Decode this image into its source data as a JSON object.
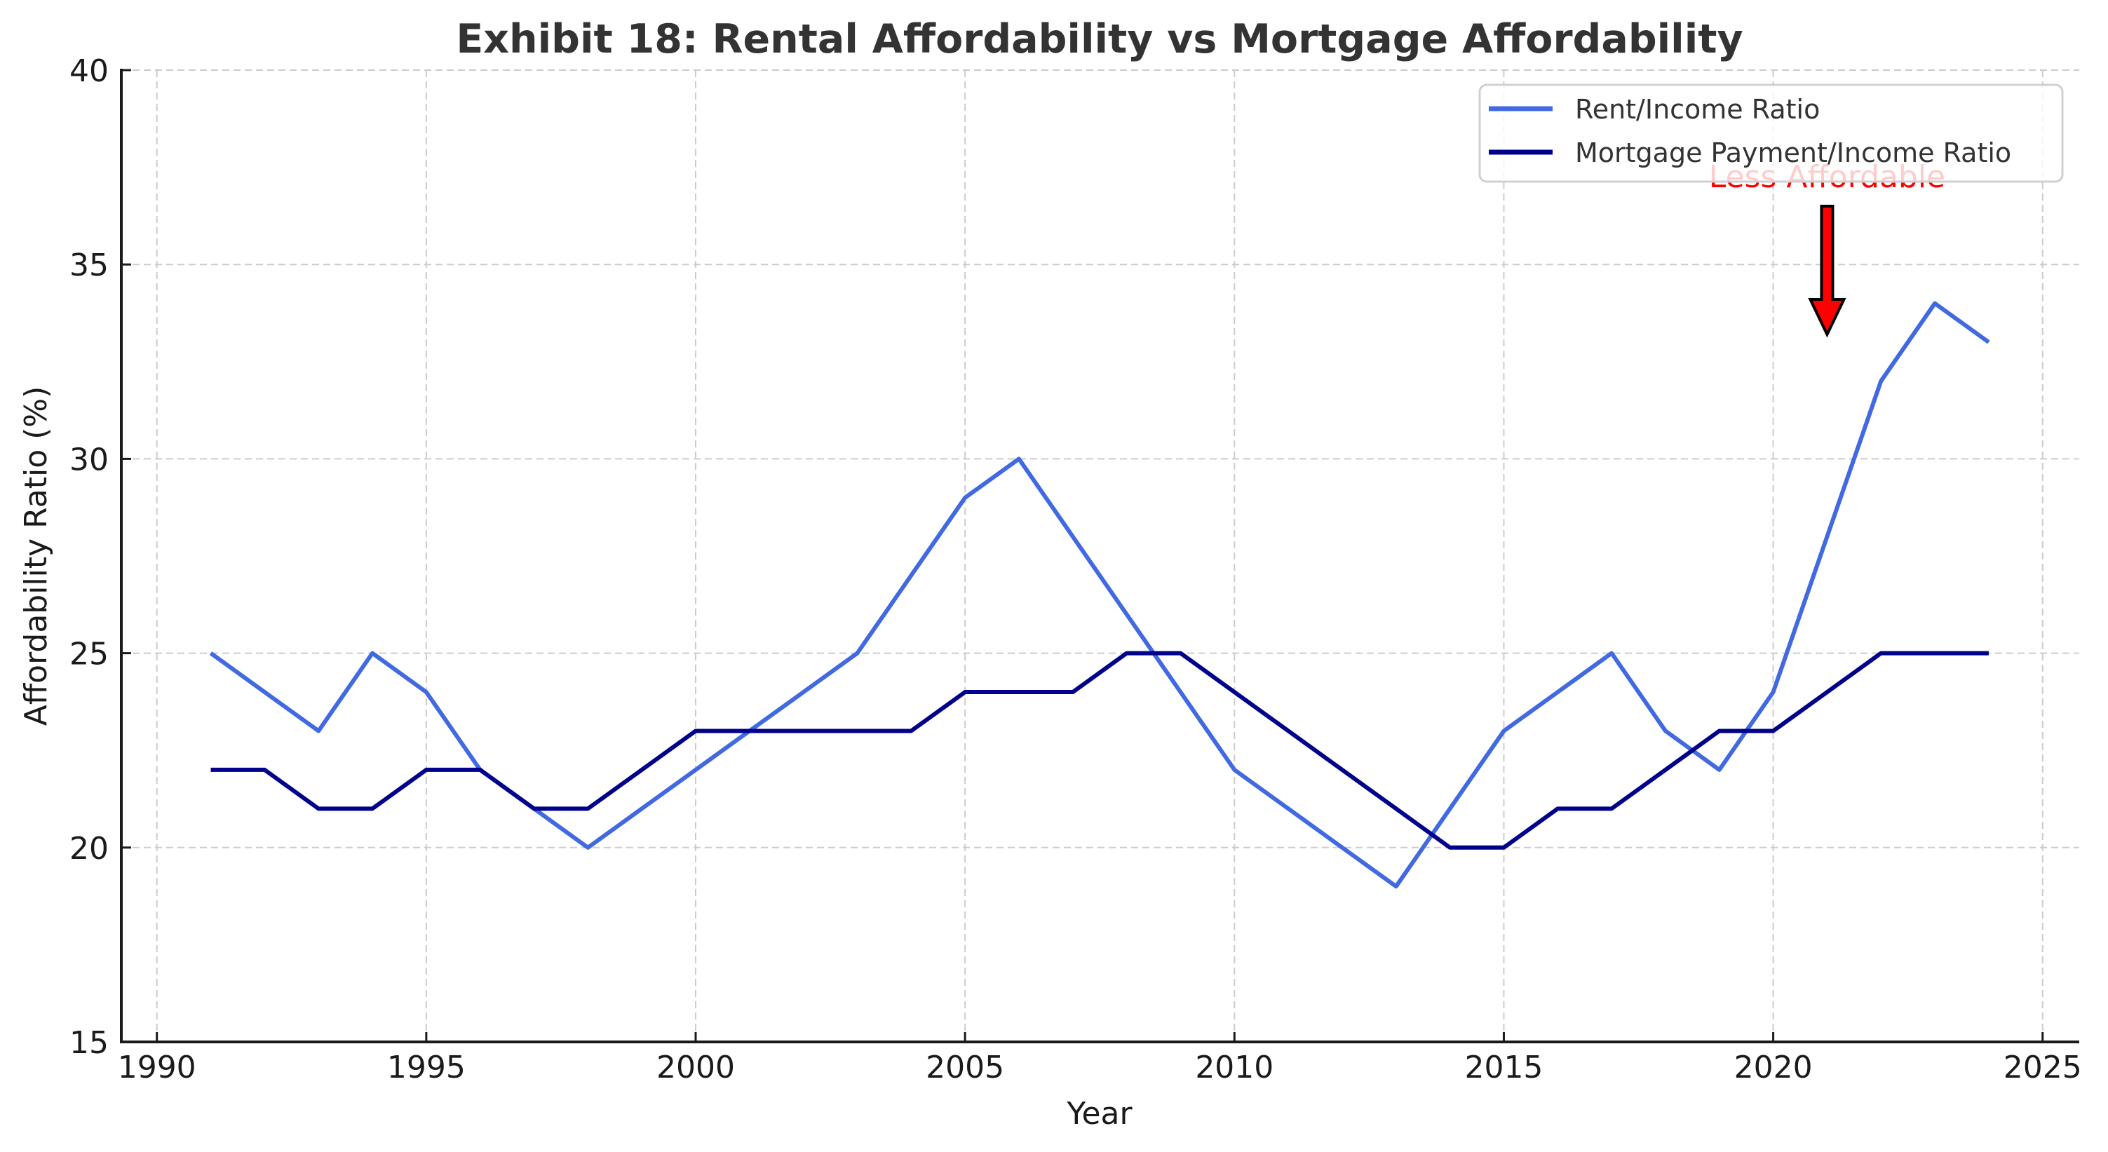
{
  "chart_data": {
    "type": "line",
    "title": "Exhibit 18: Rental Affordability vs Mortgage Affordability",
    "xlabel": "Year",
    "ylabel": "Affordability Ratio (%)",
    "xlim": [
      1989.34,
      2025.68
    ],
    "ylim": [
      15,
      40
    ],
    "x_ticks": [
      1990,
      1995,
      2000,
      2005,
      2010,
      2015,
      2020,
      2025
    ],
    "y_ticks": [
      15,
      20,
      25,
      30,
      35,
      40
    ],
    "grid": true,
    "legend_position": "top-right",
    "x": [
      1991,
      1992,
      1993,
      1994,
      1995,
      1996,
      1997,
      1998,
      1999,
      2000,
      2001,
      2002,
      2003,
      2004,
      2005,
      2006,
      2007,
      2008,
      2009,
      2010,
      2011,
      2012,
      2013,
      2014,
      2015,
      2016,
      2017,
      2018,
      2019,
      2020,
      2021,
      2022,
      2023,
      2024
    ],
    "series": [
      {
        "name": "Rent/Income Ratio",
        "color": "#4169e1",
        "values": [
          25,
          24,
          23,
          25,
          24,
          22,
          21,
          20,
          21,
          22,
          23,
          24,
          25,
          27,
          29,
          30,
          28,
          26,
          24,
          22,
          21,
          20,
          19,
          21,
          23,
          24,
          25,
          23,
          22,
          24,
          28,
          32,
          34,
          33
        ]
      },
      {
        "name": "Mortgage Payment/Income Ratio",
        "color": "#00008b",
        "values": [
          22,
          22,
          21,
          21,
          22,
          22,
          21,
          21,
          22,
          23,
          23,
          23,
          23,
          23,
          24,
          24,
          24,
          25,
          25,
          24,
          23,
          22,
          21,
          20,
          20,
          21,
          21,
          22,
          23,
          23,
          24,
          25,
          25,
          25
        ]
      }
    ],
    "annotation": {
      "text": "Less Affordable",
      "text_xy": [
        2021,
        37
      ],
      "arrow_from": [
        2021,
        36.5
      ],
      "arrow_to": [
        2021,
        33.2
      ],
      "color": "#ff0000"
    }
  }
}
